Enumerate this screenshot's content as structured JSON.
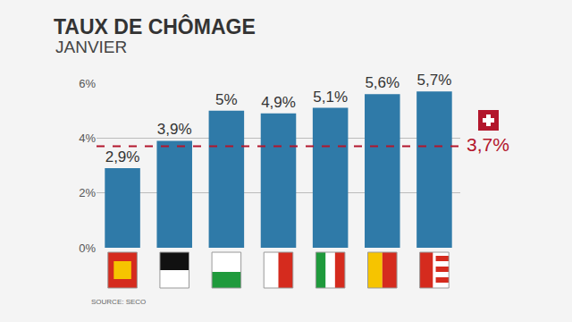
{
  "chart_data": {
    "type": "bar",
    "title": "TAUX DE CHÔMAGE",
    "subtitle": "JANVIER",
    "categories": [
      null,
      null,
      null,
      null,
      null,
      null,
      null
    ],
    "values": [
      2.9,
      3.9,
      5,
      4.9,
      5.1,
      5.6,
      5.7
    ],
    "value_labels": [
      "2,9%",
      "3,9%",
      "5%",
      "4,9%",
      "5,1%",
      "5,6%",
      "5,7%"
    ],
    "color": "#2f7aa8",
    "data_labels": true,
    "ylim": [
      0,
      6
    ],
    "yticks": [
      {
        "value": 0,
        "label": "0%"
      },
      {
        "value": 2,
        "label": "2%"
      },
      {
        "value": 4,
        "label": "4%"
      },
      {
        "value": 6,
        "label": "6%"
      }
    ],
    "grid": true,
    "annotations": [
      {
        "text": "3,7%",
        "value": 3.7,
        "color": "#b3162c",
        "line_style": "dashed"
      },
      {
        "text": "SOURCE: SECO"
      }
    ]
  }
}
